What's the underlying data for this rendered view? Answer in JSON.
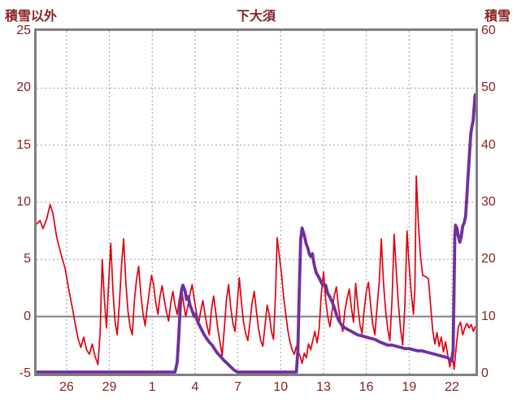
{
  "header": {
    "left_axis_title": "積雪以外",
    "station_title": "下大須",
    "right_axis_title": "積雪"
  },
  "colors": {
    "text": "#8b2222",
    "frame": "#7f7f7f",
    "grid": "#9e9e9e",
    "zero_line": "#7f7f7f",
    "temperature_line": "#e00010",
    "snow_line": "#7030a0",
    "background": "#ffffff"
  },
  "chart_data": {
    "type": "line",
    "title": "下大須",
    "grid": "dashed",
    "legend": "none",
    "x_domain": [
      0,
      30.75
    ],
    "x_ticks": [
      {
        "t": 2.1,
        "label": "26"
      },
      {
        "t": 5.1,
        "label": "29"
      },
      {
        "t": 8.1,
        "label": "1"
      },
      {
        "t": 11.1,
        "label": "4"
      },
      {
        "t": 14.1,
        "label": "7"
      },
      {
        "t": 17.1,
        "label": "10"
      },
      {
        "t": 20.1,
        "label": "13"
      },
      {
        "t": 23.1,
        "label": "16"
      },
      {
        "t": 26.1,
        "label": "19"
      },
      {
        "t": 29.1,
        "label": "22"
      }
    ],
    "left_axis": {
      "label": "積雪以外",
      "min": -5,
      "max": 25,
      "ticks": [
        25,
        20,
        15,
        10,
        5,
        0,
        -5
      ]
    },
    "right_axis": {
      "label": "積雪",
      "min": 0,
      "max": 60,
      "ticks": [
        60,
        50,
        40,
        30,
        20,
        10,
        0
      ]
    },
    "zero_line": true,
    "series": [
      {
        "name": "積雪以外",
        "axis": "left",
        "color": "#e00010",
        "width": 1.7,
        "points": [
          [
            0,
            8.1
          ],
          [
            0.25,
            8.4
          ],
          [
            0.45,
            7.7
          ],
          [
            0.7,
            8.5
          ],
          [
            0.95,
            9.8
          ],
          [
            1.15,
            9.0
          ],
          [
            1.4,
            7.0
          ],
          [
            1.7,
            5.5
          ],
          [
            2.0,
            4.2
          ],
          [
            2.25,
            2.4
          ],
          [
            2.5,
            0.8
          ],
          [
            2.7,
            -0.6
          ],
          [
            2.9,
            -1.9
          ],
          [
            3.1,
            -2.7
          ],
          [
            3.3,
            -1.8
          ],
          [
            3.5,
            -2.9
          ],
          [
            3.7,
            -3.3
          ],
          [
            3.9,
            -2.4
          ],
          [
            4.1,
            -3.5
          ],
          [
            4.3,
            -4.2
          ],
          [
            4.45,
            -1.5
          ],
          [
            4.6,
            5.0
          ],
          [
            4.75,
            1.5
          ],
          [
            4.9,
            -1.0
          ],
          [
            5.05,
            3.0
          ],
          [
            5.2,
            6.4
          ],
          [
            5.35,
            2.2
          ],
          [
            5.5,
            -0.5
          ],
          [
            5.65,
            -1.6
          ],
          [
            5.8,
            1.2
          ],
          [
            5.95,
            4.5
          ],
          [
            6.1,
            6.8
          ],
          [
            6.25,
            3.0
          ],
          [
            6.4,
            0.5
          ],
          [
            6.55,
            -0.9
          ],
          [
            6.7,
            -1.6
          ],
          [
            6.85,
            1.4
          ],
          [
            7.0,
            3.2
          ],
          [
            7.15,
            4.4
          ],
          [
            7.3,
            2.0
          ],
          [
            7.45,
            0.3
          ],
          [
            7.6,
            -0.8
          ],
          [
            7.75,
            0.8
          ],
          [
            7.9,
            2.2
          ],
          [
            8.05,
            3.6
          ],
          [
            8.2,
            2.8
          ],
          [
            8.35,
            1.2
          ],
          [
            8.5,
            0.2
          ],
          [
            8.65,
            1.8
          ],
          [
            8.8,
            2.7
          ],
          [
            8.95,
            1.4
          ],
          [
            9.1,
            0.4
          ],
          [
            9.25,
            -0.4
          ],
          [
            9.4,
            1.2
          ],
          [
            9.55,
            2.2
          ],
          [
            9.7,
            1.0
          ],
          [
            9.85,
            0.2
          ],
          [
            10.0,
            1.5
          ],
          [
            10.15,
            2.6
          ],
          [
            10.3,
            1.1
          ],
          [
            10.45,
            0.0
          ],
          [
            10.6,
            0.9
          ],
          [
            10.75,
            2.0
          ],
          [
            10.9,
            2.8
          ],
          [
            11.05,
            1.5
          ],
          [
            11.2,
            0.3
          ],
          [
            11.35,
            -0.6
          ],
          [
            11.5,
            0.5
          ],
          [
            11.65,
            1.4
          ],
          [
            11.8,
            0.2
          ],
          [
            11.95,
            -0.9
          ],
          [
            12.1,
            -1.6
          ],
          [
            12.25,
            0.6
          ],
          [
            12.4,
            1.8
          ],
          [
            12.55,
            0.4
          ],
          [
            12.7,
            -1.1
          ],
          [
            12.85,
            -2.3
          ],
          [
            13.0,
            -3.4
          ],
          [
            13.15,
            -1.1
          ],
          [
            13.3,
            1.5
          ],
          [
            13.45,
            2.8
          ],
          [
            13.6,
            0.8
          ],
          [
            13.75,
            -0.6
          ],
          [
            13.9,
            -1.3
          ],
          [
            14.05,
            1.0
          ],
          [
            14.2,
            3.4
          ],
          [
            14.35,
            1.2
          ],
          [
            14.5,
            -0.5
          ],
          [
            14.65,
            -1.5
          ],
          [
            14.8,
            -2.1
          ],
          [
            14.95,
            -0.5
          ],
          [
            15.1,
            1.2
          ],
          [
            15.25,
            2.2
          ],
          [
            15.4,
            0.5
          ],
          [
            15.55,
            -1.1
          ],
          [
            15.7,
            -2.1
          ],
          [
            15.85,
            -2.6
          ],
          [
            16.0,
            -0.8
          ],
          [
            16.15,
            1.0
          ],
          [
            16.3,
            0.2
          ],
          [
            16.45,
            -1.3
          ],
          [
            16.6,
            -2.0
          ],
          [
            16.75,
            2.2
          ],
          [
            16.85,
            6.9
          ],
          [
            17.0,
            5.4
          ],
          [
            17.15,
            3.8
          ],
          [
            17.3,
            1.8
          ],
          [
            17.45,
            0.3
          ],
          [
            17.6,
            -1.2
          ],
          [
            17.75,
            -2.2
          ],
          [
            17.9,
            -2.9
          ],
          [
            18.05,
            -3.3
          ],
          [
            18.2,
            -2.6
          ],
          [
            18.35,
            -3.1
          ],
          [
            18.5,
            -3.6
          ],
          [
            18.6,
            -4.1
          ],
          [
            18.75,
            -3.2
          ],
          [
            18.9,
            -3.6
          ],
          [
            19.05,
            -2.4
          ],
          [
            19.2,
            -2.9
          ],
          [
            19.35,
            -2.1
          ],
          [
            19.5,
            -1.3
          ],
          [
            19.65,
            -2.3
          ],
          [
            19.8,
            -1.0
          ],
          [
            19.95,
            2.0
          ],
          [
            20.1,
            3.9
          ],
          [
            20.25,
            1.5
          ],
          [
            20.4,
            0.0
          ],
          [
            20.55,
            -0.9
          ],
          [
            20.7,
            0.5
          ],
          [
            20.85,
            1.8
          ],
          [
            21.0,
            2.6
          ],
          [
            21.15,
            0.8
          ],
          [
            21.3,
            -0.5
          ],
          [
            21.45,
            -1.3
          ],
          [
            21.6,
            0.5
          ],
          [
            21.75,
            1.6
          ],
          [
            21.9,
            2.4
          ],
          [
            22.05,
            0.8
          ],
          [
            22.2,
            -0.5
          ],
          [
            22.35,
            2.9
          ],
          [
            22.5,
            1.0
          ],
          [
            22.65,
            -0.7
          ],
          [
            22.8,
            -1.5
          ],
          [
            22.95,
            0.6
          ],
          [
            23.1,
            2.2
          ],
          [
            23.25,
            3.0
          ],
          [
            23.4,
            1.0
          ],
          [
            23.55,
            -0.7
          ],
          [
            23.7,
            -1.6
          ],
          [
            23.85,
            0.8
          ],
          [
            24.0,
            3.0
          ],
          [
            24.15,
            6.8
          ],
          [
            24.3,
            3.0
          ],
          [
            24.45,
            0.5
          ],
          [
            24.6,
            -1.1
          ],
          [
            24.75,
            -2.1
          ],
          [
            24.9,
            1.5
          ],
          [
            25.05,
            7.2
          ],
          [
            25.2,
            4.0
          ],
          [
            25.35,
            1.0
          ],
          [
            25.5,
            -1.1
          ],
          [
            25.65,
            -2.5
          ],
          [
            25.8,
            1.0
          ],
          [
            25.95,
            7.5
          ],
          [
            26.1,
            4.5
          ],
          [
            26.25,
            2.0
          ],
          [
            26.4,
            0.2
          ],
          [
            26.5,
            2.5
          ],
          [
            26.6,
            12.3
          ],
          [
            26.75,
            8.0
          ],
          [
            26.9,
            5.2
          ],
          [
            27.05,
            3.6
          ],
          [
            27.25,
            3.5
          ],
          [
            27.45,
            3.3
          ],
          [
            27.6,
            1.0
          ],
          [
            27.75,
            -1.2
          ],
          [
            27.9,
            -2.4
          ],
          [
            28.05,
            -1.4
          ],
          [
            28.2,
            -2.6
          ],
          [
            28.35,
            -1.8
          ],
          [
            28.5,
            -3.1
          ],
          [
            28.65,
            -2.2
          ],
          [
            28.8,
            -3.4
          ],
          [
            28.95,
            -4.4
          ],
          [
            29.1,
            -3.1
          ],
          [
            29.25,
            -4.6
          ],
          [
            29.4,
            -2.6
          ],
          [
            29.55,
            -0.9
          ],
          [
            29.7,
            -0.5
          ],
          [
            29.85,
            -1.6
          ],
          [
            30.0,
            -1.0
          ],
          [
            30.15,
            -0.6
          ],
          [
            30.3,
            -1.0
          ],
          [
            30.45,
            -0.7
          ],
          [
            30.6,
            -1.3
          ],
          [
            30.72,
            -0.9
          ]
        ]
      },
      {
        "name": "積雪",
        "axis": "right",
        "color": "#7030a0",
        "width": 3.8,
        "points": [
          [
            0,
            0
          ],
          [
            9.7,
            0
          ],
          [
            9.85,
            2
          ],
          [
            9.95,
            6
          ],
          [
            10.05,
            11
          ],
          [
            10.15,
            14.5
          ],
          [
            10.25,
            15.5
          ],
          [
            10.4,
            14.5
          ],
          [
            10.5,
            13
          ],
          [
            10.62,
            13.5
          ],
          [
            10.75,
            12
          ],
          [
            10.9,
            11
          ],
          [
            11.05,
            10
          ],
          [
            11.15,
            10.4
          ],
          [
            11.3,
            9
          ],
          [
            11.5,
            8
          ],
          [
            11.7,
            7
          ],
          [
            11.9,
            6.2
          ],
          [
            12.1,
            5.5
          ],
          [
            12.3,
            5
          ],
          [
            12.5,
            4.2
          ],
          [
            12.7,
            3.5
          ],
          [
            12.9,
            3
          ],
          [
            13.1,
            2.4
          ],
          [
            13.35,
            1.8
          ],
          [
            13.6,
            1.2
          ],
          [
            13.85,
            0.6
          ],
          [
            14.1,
            0.2
          ],
          [
            14.3,
            0
          ],
          [
            18.2,
            0
          ],
          [
            18.3,
            4
          ],
          [
            18.4,
            14
          ],
          [
            18.5,
            23.5
          ],
          [
            18.6,
            25.5
          ],
          [
            18.75,
            24.2
          ],
          [
            18.9,
            22.6
          ],
          [
            19.0,
            22
          ],
          [
            19.1,
            21
          ],
          [
            19.2,
            20.5
          ],
          [
            19.32,
            21
          ],
          [
            19.45,
            19
          ],
          [
            19.6,
            17.6
          ],
          [
            19.75,
            17
          ],
          [
            19.9,
            16.2
          ],
          [
            20.05,
            15.5
          ],
          [
            20.25,
            15.5
          ],
          [
            20.4,
            14
          ],
          [
            20.55,
            13.4
          ],
          [
            20.7,
            12.6
          ],
          [
            20.85,
            11.6
          ],
          [
            21.0,
            10.4
          ],
          [
            21.15,
            9.4
          ],
          [
            21.35,
            8.6
          ],
          [
            21.6,
            8
          ],
          [
            21.9,
            7.6
          ],
          [
            22.2,
            7.2
          ],
          [
            22.5,
            6.8
          ],
          [
            22.8,
            6.6
          ],
          [
            23.1,
            6.4
          ],
          [
            23.4,
            6.2
          ],
          [
            23.7,
            6
          ],
          [
            24.0,
            5.6
          ],
          [
            24.3,
            5.3
          ],
          [
            24.6,
            5
          ],
          [
            24.9,
            5
          ],
          [
            25.2,
            4.8
          ],
          [
            25.5,
            4.6
          ],
          [
            25.8,
            4.4
          ],
          [
            26.1,
            4.4
          ],
          [
            26.4,
            4.2
          ],
          [
            26.7,
            4
          ],
          [
            27.0,
            4
          ],
          [
            27.3,
            3.8
          ],
          [
            27.6,
            3.6
          ],
          [
            27.9,
            3.4
          ],
          [
            28.2,
            3.2
          ],
          [
            28.5,
            3
          ],
          [
            28.8,
            2.8
          ],
          [
            29.0,
            2.4
          ],
          [
            29.1,
            2.2
          ],
          [
            29.18,
            4
          ],
          [
            29.24,
            14
          ],
          [
            29.3,
            24
          ],
          [
            29.35,
            26
          ],
          [
            29.45,
            25.4
          ],
          [
            29.55,
            24
          ],
          [
            29.65,
            23
          ],
          [
            29.75,
            24
          ],
          [
            29.85,
            25.8
          ],
          [
            29.95,
            26.4
          ],
          [
            30.05,
            27.5
          ],
          [
            30.12,
            30
          ],
          [
            30.2,
            33.5
          ],
          [
            30.28,
            36.5
          ],
          [
            30.35,
            39.5
          ],
          [
            30.42,
            42
          ],
          [
            30.5,
            43.3
          ],
          [
            30.58,
            44.2
          ],
          [
            30.65,
            46.5
          ],
          [
            30.72,
            48.8
          ]
        ]
      }
    ]
  }
}
